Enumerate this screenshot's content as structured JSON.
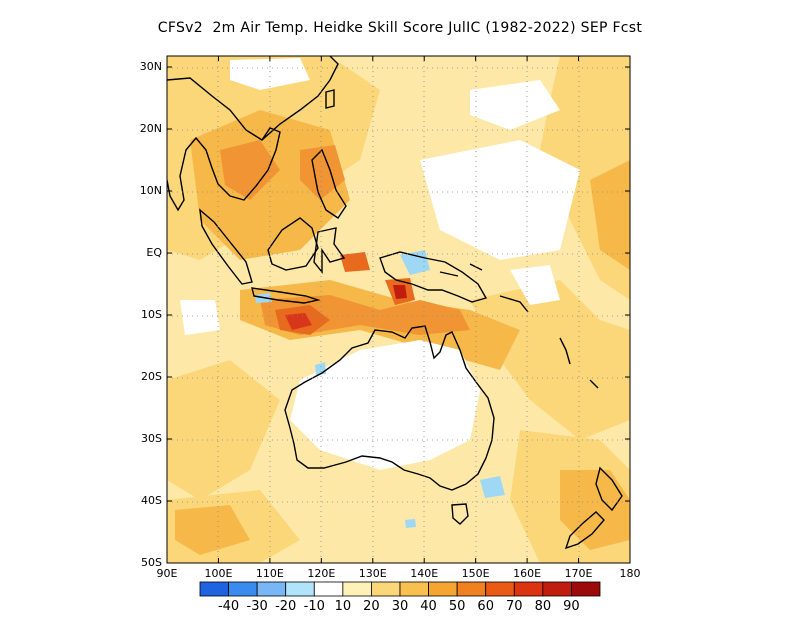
{
  "title": "CFSv2  2m Air Temp. Heidke Skill Score JulIC (1982-2022) SEP Fcst",
  "map": {
    "lon_range": [
      90,
      180
    ],
    "lat_range": [
      -50,
      32
    ],
    "lat_ticks": [
      {
        "value": 30,
        "label": "30N"
      },
      {
        "value": 20,
        "label": "20N"
      },
      {
        "value": 10,
        "label": "10N"
      },
      {
        "value": 0,
        "label": "EQ"
      },
      {
        "value": -10,
        "label": "10S"
      },
      {
        "value": -20,
        "label": "20S"
      },
      {
        "value": -30,
        "label": "30S"
      },
      {
        "value": -40,
        "label": "40S"
      },
      {
        "value": -50,
        "label": "50S"
      }
    ],
    "lon_ticks": [
      {
        "value": 90,
        "label": "90E"
      },
      {
        "value": 100,
        "label": "100E"
      },
      {
        "value": 110,
        "label": "110E"
      },
      {
        "value": 120,
        "label": "120E"
      },
      {
        "value": 130,
        "label": "130E"
      },
      {
        "value": 140,
        "label": "140E"
      },
      {
        "value": 150,
        "label": "150E"
      },
      {
        "value": 160,
        "label": "160E"
      },
      {
        "value": 170,
        "label": "170E"
      },
      {
        "value": 180,
        "label": "180"
      }
    ],
    "gridlines": "dotted",
    "background_fill": "#fde8a8"
  },
  "colorbar": {
    "colors": [
      "#1f63e0",
      "#3a8bf0",
      "#78b6f5",
      "#b0e4fa",
      "#ffffff",
      "#fff2b8",
      "#fbd77a",
      "#f7c04f",
      "#f5a531",
      "#f08020",
      "#ea5a15",
      "#dc3411",
      "#c01d0e",
      "#9c0a0a"
    ],
    "labels": [
      "-40",
      "-30",
      "-20",
      "-10",
      "10",
      "20",
      "30",
      "40",
      "50",
      "60",
      "70",
      "80",
      "90"
    ]
  },
  "shading": {
    "pale": "#fde8a8",
    "light": "#fbd77a",
    "medium": "#f7b84a",
    "strong": "#f19434",
    "intense": "#e86a1e",
    "hot": "#d8361a",
    "blue": "#9fd8f5"
  }
}
